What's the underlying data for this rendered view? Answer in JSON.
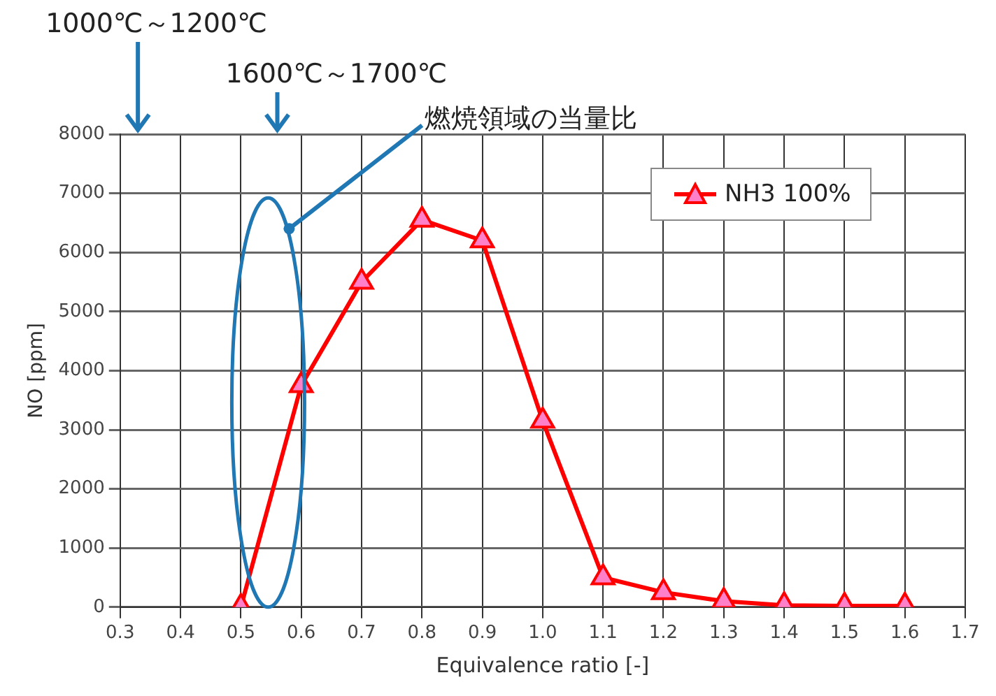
{
  "chart_data": {
    "type": "line",
    "xlabel": "Equivalence ratio [-]",
    "ylabel": "NO [ppm]",
    "x": [
      0.5,
      0.6,
      0.7,
      0.8,
      0.9,
      1.0,
      1.1,
      1.2,
      1.3,
      1.4,
      1.5,
      1.6
    ],
    "series": [
      {
        "name": "NH3 100%",
        "color": "#ff0000",
        "values": [
          0,
          3750,
          5500,
          6550,
          6200,
          3150,
          500,
          250,
          100,
          30,
          20,
          20
        ]
      }
    ],
    "xlim": [
      0.3,
      1.7
    ],
    "xticks": [
      0.3,
      0.4,
      0.5,
      0.6,
      0.7,
      0.8,
      0.9,
      {
        "value": 1.0,
        "label": "1.0"
      },
      1.1,
      1.2,
      1.3,
      1.4,
      1.5,
      1.6,
      1.7
    ],
    "ylim": [
      0,
      8000
    ],
    "yticks": [
      0,
      1000,
      2000,
      3000,
      4000,
      5000,
      6000,
      7000,
      8000
    ],
    "grid": true,
    "legend": "top right",
    "marker": "triangle",
    "line_style": "solid",
    "annotations": [
      "1000℃～1200℃",
      "1600℃～1700℃",
      "燃焼領域の当量比"
    ]
  }
}
